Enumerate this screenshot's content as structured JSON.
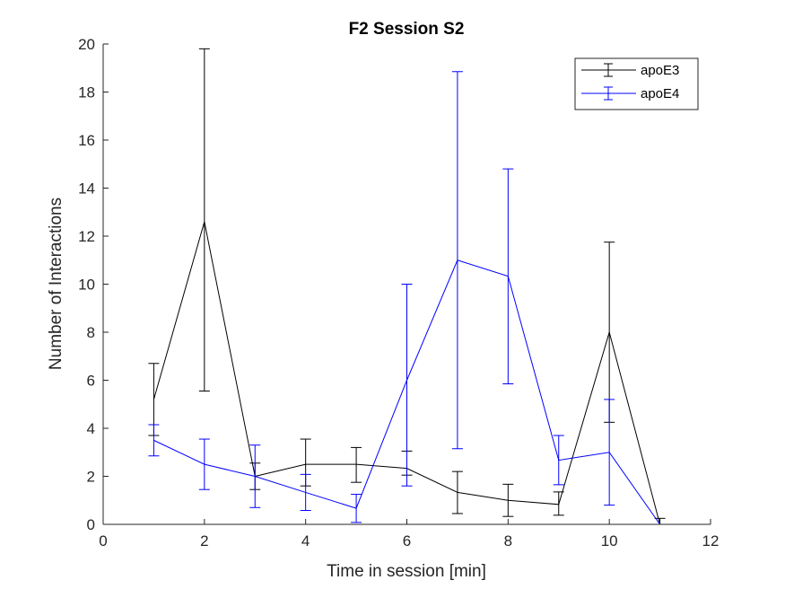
{
  "chart_data": {
    "type": "line",
    "title": "F2 Session S2",
    "xlabel": "Time in session [min]",
    "ylabel": "Number of Interactions",
    "xlim": [
      0,
      12
    ],
    "ylim": [
      0,
      20
    ],
    "xticks": [
      0,
      2,
      4,
      6,
      8,
      10,
      12
    ],
    "yticks": [
      0,
      2,
      4,
      6,
      8,
      10,
      12,
      14,
      16,
      18,
      20
    ],
    "grid": false,
    "legend_position": "top-right",
    "series": [
      {
        "name": "apoE3",
        "color": "#000000",
        "x": [
          1,
          2,
          3,
          4,
          5,
          6,
          7,
          8,
          9,
          10,
          11
        ],
        "y": [
          5.2,
          12.6,
          2.0,
          2.5,
          2.5,
          2.33,
          1.33,
          1.0,
          0.83,
          8.0,
          0.0
        ],
        "err_low": [
          3.7,
          5.55,
          1.45,
          1.6,
          1.75,
          2.05,
          0.45,
          0.33,
          0.38,
          4.25,
          0.0
        ],
        "err_high": [
          6.7,
          19.8,
          2.55,
          3.55,
          3.2,
          3.05,
          2.2,
          1.67,
          1.35,
          11.75,
          0.25
        ]
      },
      {
        "name": "apoE4",
        "color": "#0000FF",
        "x": [
          1,
          2,
          3,
          4,
          5,
          6,
          7,
          8,
          9,
          10,
          11
        ],
        "y": [
          3.5,
          2.5,
          2.0,
          1.33,
          0.67,
          6.0,
          11.0,
          10.33,
          2.67,
          3.0,
          0.0
        ],
        "err_low": [
          2.85,
          1.45,
          0.7,
          0.58,
          0.08,
          1.6,
          3.15,
          5.85,
          1.65,
          0.8,
          0.0
        ],
        "err_high": [
          4.15,
          3.55,
          3.3,
          2.08,
          1.25,
          10.0,
          18.85,
          14.8,
          3.7,
          5.2,
          0.0
        ]
      }
    ]
  }
}
